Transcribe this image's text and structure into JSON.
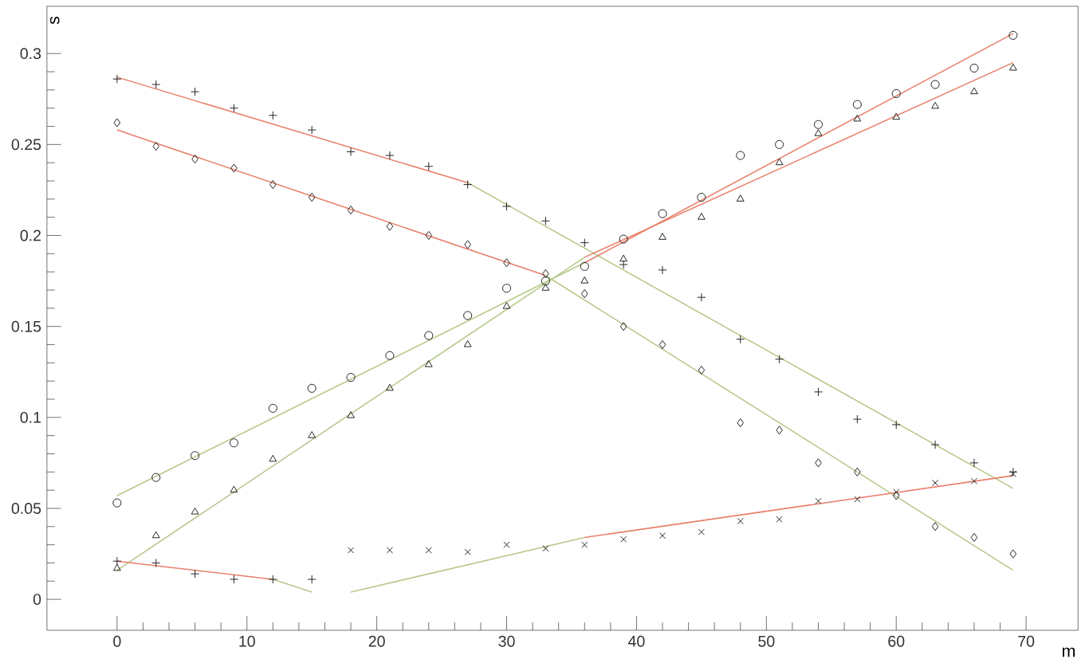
{
  "chart_data": {
    "type": "scatter",
    "xlabel": "m",
    "ylabel": "s",
    "xlim": [
      -5.4,
      74
    ],
    "ylim": [
      -0.017,
      0.326
    ],
    "xticks": [
      0,
      10,
      20,
      30,
      40,
      50,
      60,
      70
    ],
    "yticks": [
      0,
      0.05,
      0.1,
      0.15,
      0.2,
      0.25,
      0.3
    ],
    "series": [
      {
        "type": "line",
        "marker": "none",
        "color": "#e8806a",
        "x": [
          0,
          27
        ],
        "values": [
          0.287,
          0.229
        ]
      },
      {
        "type": "line",
        "marker": "none",
        "color": "#b5c98a",
        "x": [
          27,
          69
        ],
        "values": [
          0.229,
          0.061
        ]
      },
      {
        "type": "line",
        "marker": "none",
        "color": "#e8806a",
        "x": [
          0,
          33
        ],
        "values": [
          0.258,
          0.178
        ]
      },
      {
        "type": "line",
        "marker": "none",
        "color": "#b5c98a",
        "x": [
          33,
          69
        ],
        "values": [
          0.178,
          0.016
        ]
      },
      {
        "type": "line",
        "marker": "none",
        "color": "#b5c98a",
        "x": [
          0,
          36
        ],
        "values": [
          0.057,
          0.185
        ]
      },
      {
        "type": "line",
        "marker": "none",
        "color": "#e8806a",
        "x": [
          36,
          69
        ],
        "values": [
          0.185,
          0.311
        ]
      },
      {
        "type": "line",
        "marker": "none",
        "color": "#b5c98a",
        "x": [
          0,
          36
        ],
        "values": [
          0.016,
          0.188
        ]
      },
      {
        "type": "line",
        "marker": "none",
        "color": "#e8806a",
        "x": [
          36,
          69
        ],
        "values": [
          0.188,
          0.295
        ]
      },
      {
        "type": "line",
        "marker": "none",
        "color": "#b5c98a",
        "x": [
          18,
          36
        ],
        "values": [
          0.004,
          0.034
        ]
      },
      {
        "type": "line",
        "marker": "none",
        "color": "#e8806a",
        "x": [
          36,
          69
        ],
        "values": [
          0.034,
          0.068
        ]
      },
      {
        "type": "line",
        "marker": "none",
        "color": "#e8806a",
        "x": [
          0,
          12
        ],
        "values": [
          0.021,
          0.011
        ]
      },
      {
        "type": "line",
        "marker": "none",
        "color": "#b5c98a",
        "x": [
          12,
          15
        ],
        "values": [
          0.011,
          0.004
        ]
      },
      {
        "color": "#222222",
        "x": [
          0,
          3,
          6,
          9,
          12,
          15,
          18,
          21,
          24,
          27,
          30,
          33,
          36,
          39,
          42,
          45,
          48,
          51,
          54,
          57,
          60,
          63,
          66,
          69
        ],
        "values": [
          0.286,
          0.283,
          0.279,
          0.27,
          0.266,
          0.258,
          0.246,
          0.244,
          0.238,
          0.228,
          0.216,
          0.208,
          0.196,
          0.184,
          0.181,
          0.166,
          0.143,
          0.132,
          0.114,
          0.099,
          0.096,
          0.085,
          0.075,
          0.07
        ]
      },
      {
        "marker": "diamond",
        "color": "#222222",
        "x": [
          0,
          3,
          6,
          9,
          12,
          15,
          18,
          21,
          24,
          27,
          30,
          33,
          36,
          39,
          42,
          45,
          48,
          51,
          54,
          57,
          60,
          63,
          66,
          69
        ],
        "values": [
          0.262,
          0.249,
          0.242,
          0.237,
          0.228,
          0.221,
          0.214,
          0.205,
          0.2,
          0.195,
          0.185,
          0.179,
          0.168,
          0.15,
          0.14,
          0.126,
          0.097,
          0.093,
          0.075,
          0.07,
          0.057,
          0.04,
          0.034,
          0.025
        ]
      },
      {
        "marker": "circle",
        "color": "#222222",
        "x": [
          0,
          3,
          6,
          9,
          12,
          15,
          18,
          21,
          24,
          27,
          30,
          33,
          36,
          39,
          42,
          45,
          48,
          51,
          54,
          57,
          60,
          63,
          66,
          69
        ],
        "values": [
          0.053,
          0.067,
          0.079,
          0.086,
          0.105,
          0.116,
          0.122,
          0.134,
          0.145,
          0.156,
          0.171,
          0.175,
          0.183,
          0.198,
          0.212,
          0.221,
          0.244,
          0.25,
          0.261,
          0.272,
          0.278,
          0.283,
          0.292,
          0.31
        ]
      },
      {
        "marker": "triangle",
        "color": "#222222",
        "x": [
          0,
          3,
          6,
          9,
          12,
          15,
          18,
          21,
          24,
          27,
          30,
          33,
          36,
          39,
          42,
          45,
          48,
          51,
          54,
          57,
          60,
          63,
          66,
          69
        ],
        "values": [
          0.017,
          0.035,
          0.048,
          0.06,
          0.077,
          0.09,
          0.101,
          0.116,
          0.129,
          0.14,
          0.161,
          0.171,
          0.175,
          0.187,
          0.199,
          0.21,
          0.22,
          0.24,
          0.256,
          0.264,
          0.265,
          0.271,
          0.279,
          0.292
        ]
      },
      {
        "marker": "cross",
        "color": "#222222",
        "x": [
          18,
          21,
          24,
          27,
          30,
          33,
          36,
          39,
          42,
          45,
          48,
          51,
          54,
          57,
          60,
          63,
          66,
          69
        ],
        "values": [
          0.027,
          0.027,
          0.027,
          0.026,
          0.03,
          0.028,
          0.03,
          0.033,
          0.035,
          0.037,
          0.043,
          0.044,
          0.054,
          0.055,
          0.059,
          0.064,
          0.065,
          0.069
        ]
      },
      {
        "color": "#222222",
        "x": [
          0,
          3,
          6,
          9,
          12,
          15
        ],
        "values": [
          0.021,
          0.02,
          0.014,
          0.011,
          0.011,
          0.011
        ]
      }
    ]
  }
}
